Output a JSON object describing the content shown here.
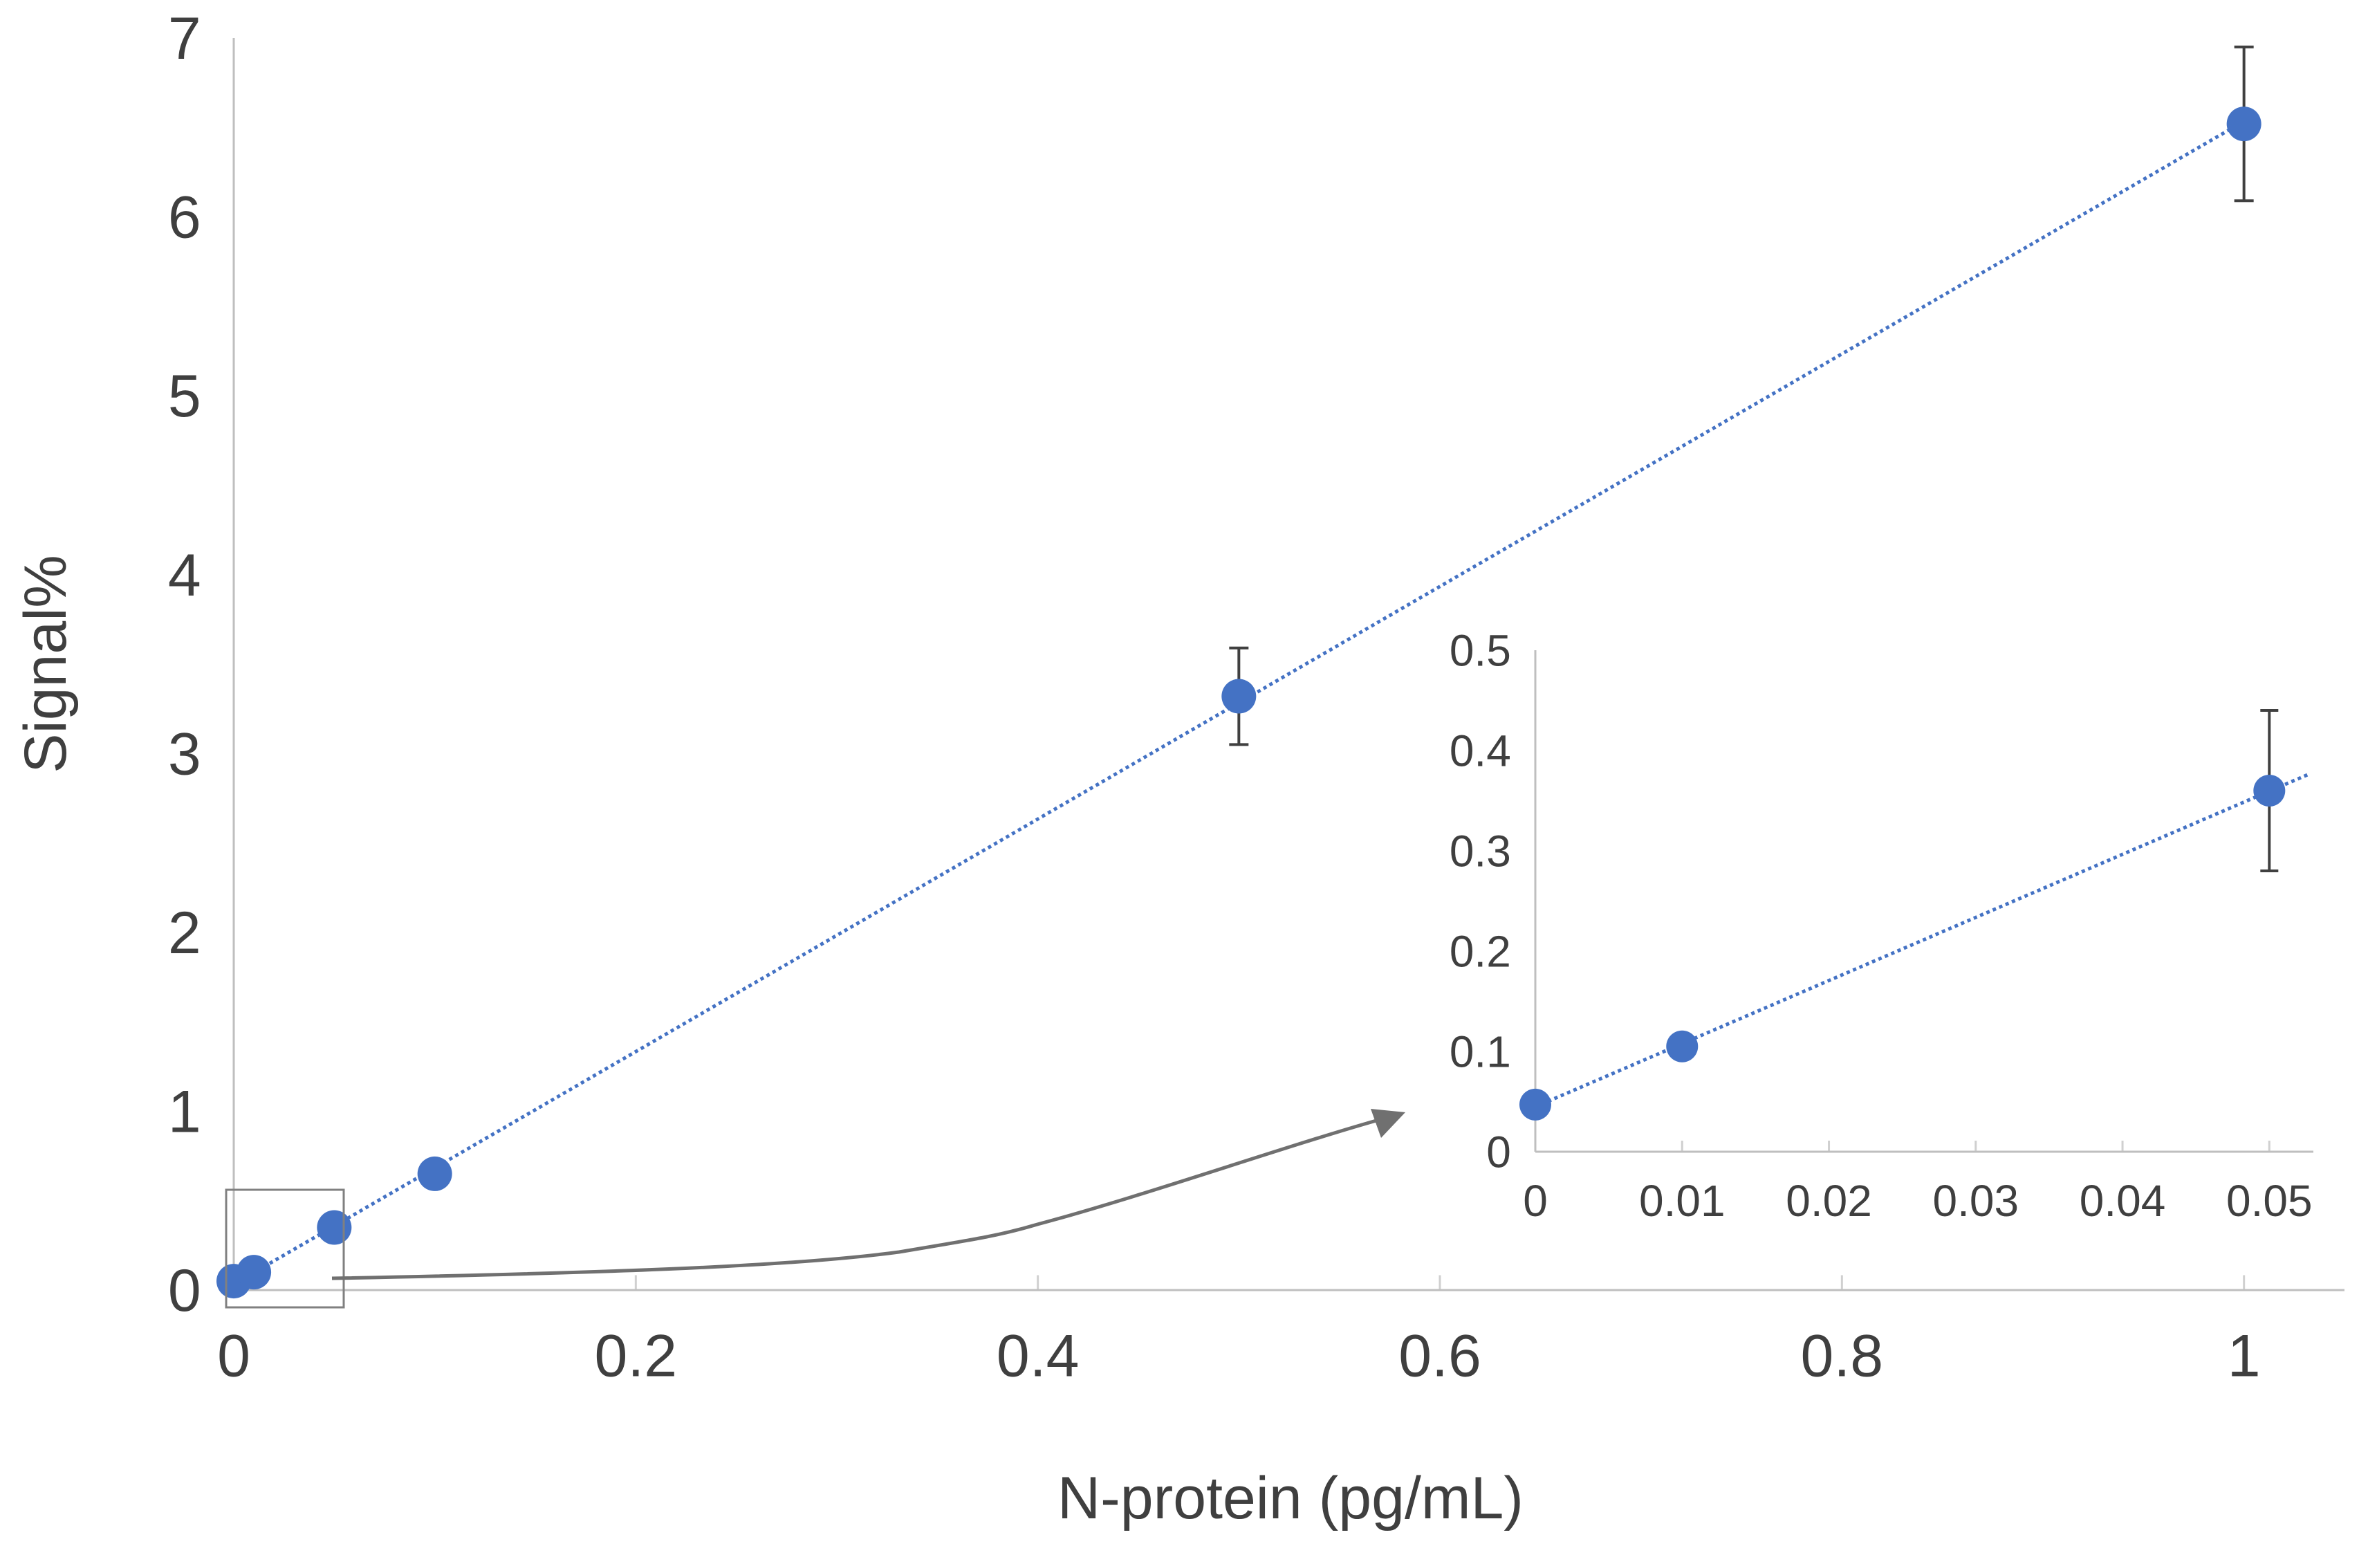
{
  "chart_data": [
    {
      "type": "scatter",
      "xlabel": "N-protein (pg/mL)",
      "ylabel": "Signal%",
      "xlim": [
        0,
        1.05
      ],
      "ylim": [
        0,
        7
      ],
      "xticks": [
        "0",
        "0.2",
        "0.4",
        "0.6",
        "0.8",
        "1"
      ],
      "yticks": [
        "0",
        "1",
        "2",
        "3",
        "4",
        "5",
        "6",
        "7"
      ],
      "trendline": {
        "style": "dotted",
        "color": "#4472c4",
        "x_range": [
          0,
          1.0
        ]
      },
      "series": [
        {
          "name": "Signal%",
          "color": "#4472c4",
          "points": [
            {
              "x": 0,
              "y": 0.05,
              "err": 0
            },
            {
              "x": 0.01,
              "y": 0.1,
              "err": 0
            },
            {
              "x": 0.05,
              "y": 0.35,
              "err": 0
            },
            {
              "x": 0.1,
              "y": 0.65,
              "err": 0
            },
            {
              "x": 0.5,
              "y": 3.32,
              "err": 0.27
            },
            {
              "x": 1.0,
              "y": 6.52,
              "err": 0.43
            }
          ]
        }
      ]
    },
    {
      "type": "scatter",
      "inset": true,
      "xlim": [
        0,
        0.053
      ],
      "ylim": [
        0,
        0.5
      ],
      "xticks": [
        "0",
        "0.01",
        "0.02",
        "0.03",
        "0.04",
        "0.05"
      ],
      "yticks": [
        "0",
        "0.1",
        "0.2",
        "0.3",
        "0.4",
        "0.5"
      ],
      "trendline": {
        "style": "dotted",
        "color": "#4472c4",
        "x_range": [
          0,
          0.0527
        ]
      },
      "series": [
        {
          "name": "Signal%",
          "color": "#4472c4",
          "points": [
            {
              "x": 0,
              "y": 0.047,
              "err": 0
            },
            {
              "x": 0.01,
              "y": 0.105,
              "err": 0
            },
            {
              "x": 0.05,
              "y": 0.36,
              "err": 0.08
            }
          ]
        }
      ]
    }
  ]
}
